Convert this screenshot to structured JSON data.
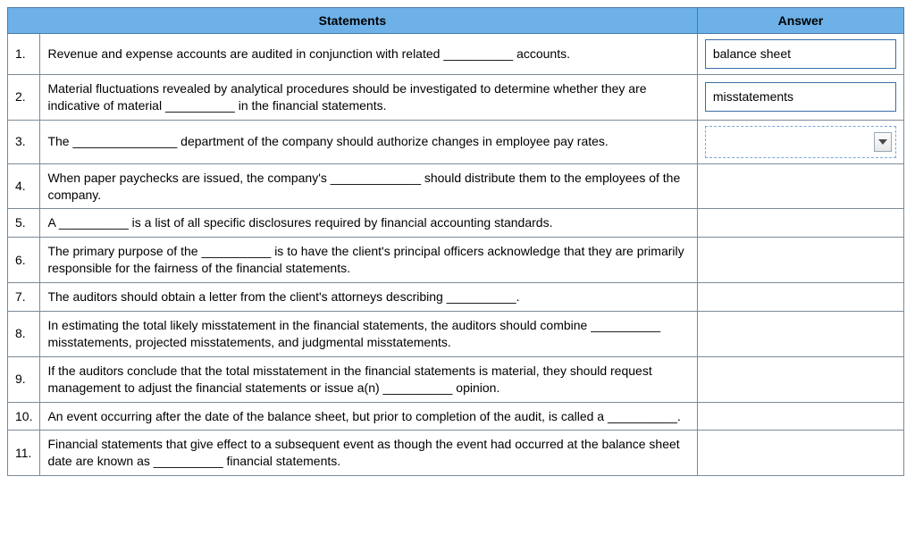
{
  "headers": {
    "statements": "Statements",
    "answer": "Answer"
  },
  "rows": [
    {
      "num": "1.",
      "statement": "Revenue and expense accounts are audited in conjunction with related __________ accounts.",
      "answer": "balance sheet",
      "answerState": "filled"
    },
    {
      "num": "2.",
      "statement": "Material fluctuations revealed by analytical procedures should be investigated to determine whether they are indicative of material __________ in the financial statements.",
      "answer": "misstatements",
      "answerState": "filled"
    },
    {
      "num": "3.",
      "statement": "The _______________ department of the company should authorize changes in employee pay rates.",
      "answer": "",
      "answerState": "dropdown"
    },
    {
      "num": "4.",
      "statement": "When paper paychecks are issued, the company's _____________ should distribute them to the employees of the company.",
      "answer": "",
      "answerState": "empty"
    },
    {
      "num": "5.",
      "statement": "A __________ is a list of all specific disclosures required by financial accounting standards.",
      "answer": "",
      "answerState": "empty"
    },
    {
      "num": "6.",
      "statement": "The primary purpose of the __________ is to have the client's principal officers acknowledge that they are primarily responsible for the fairness of the financial statements.",
      "answer": "",
      "answerState": "empty"
    },
    {
      "num": "7.",
      "statement": "The auditors should obtain a letter from the client's attorneys describing __________.",
      "answer": "",
      "answerState": "empty"
    },
    {
      "num": "8.",
      "statement": "In estimating the total likely misstatement in the financial statements, the auditors should combine __________ misstatements, projected misstatements, and judgmental misstatements.",
      "answer": "",
      "answerState": "empty"
    },
    {
      "num": "9.",
      "statement": "If the auditors conclude that the total misstatement in the financial statements is material, they should request management to adjust the financial statements or issue a(n) __________ opinion.",
      "answer": "",
      "answerState": "empty"
    },
    {
      "num": "10.",
      "statement": "An event occurring after the date of the balance sheet, but prior to completion of the audit, is called a __________.",
      "answer": "",
      "answerState": "empty"
    },
    {
      "num": "11.",
      "statement": "Financial statements that give effect to a subsequent event as though the event had occurred at the balance sheet date are known as __________ financial statements.",
      "answer": "",
      "answerState": "empty"
    }
  ],
  "colors": {
    "header_bg": "#6db1e8",
    "border": "#7b8a99",
    "filled_border": "#3b6ea5",
    "dropdown_border": "#7aa9d8"
  }
}
